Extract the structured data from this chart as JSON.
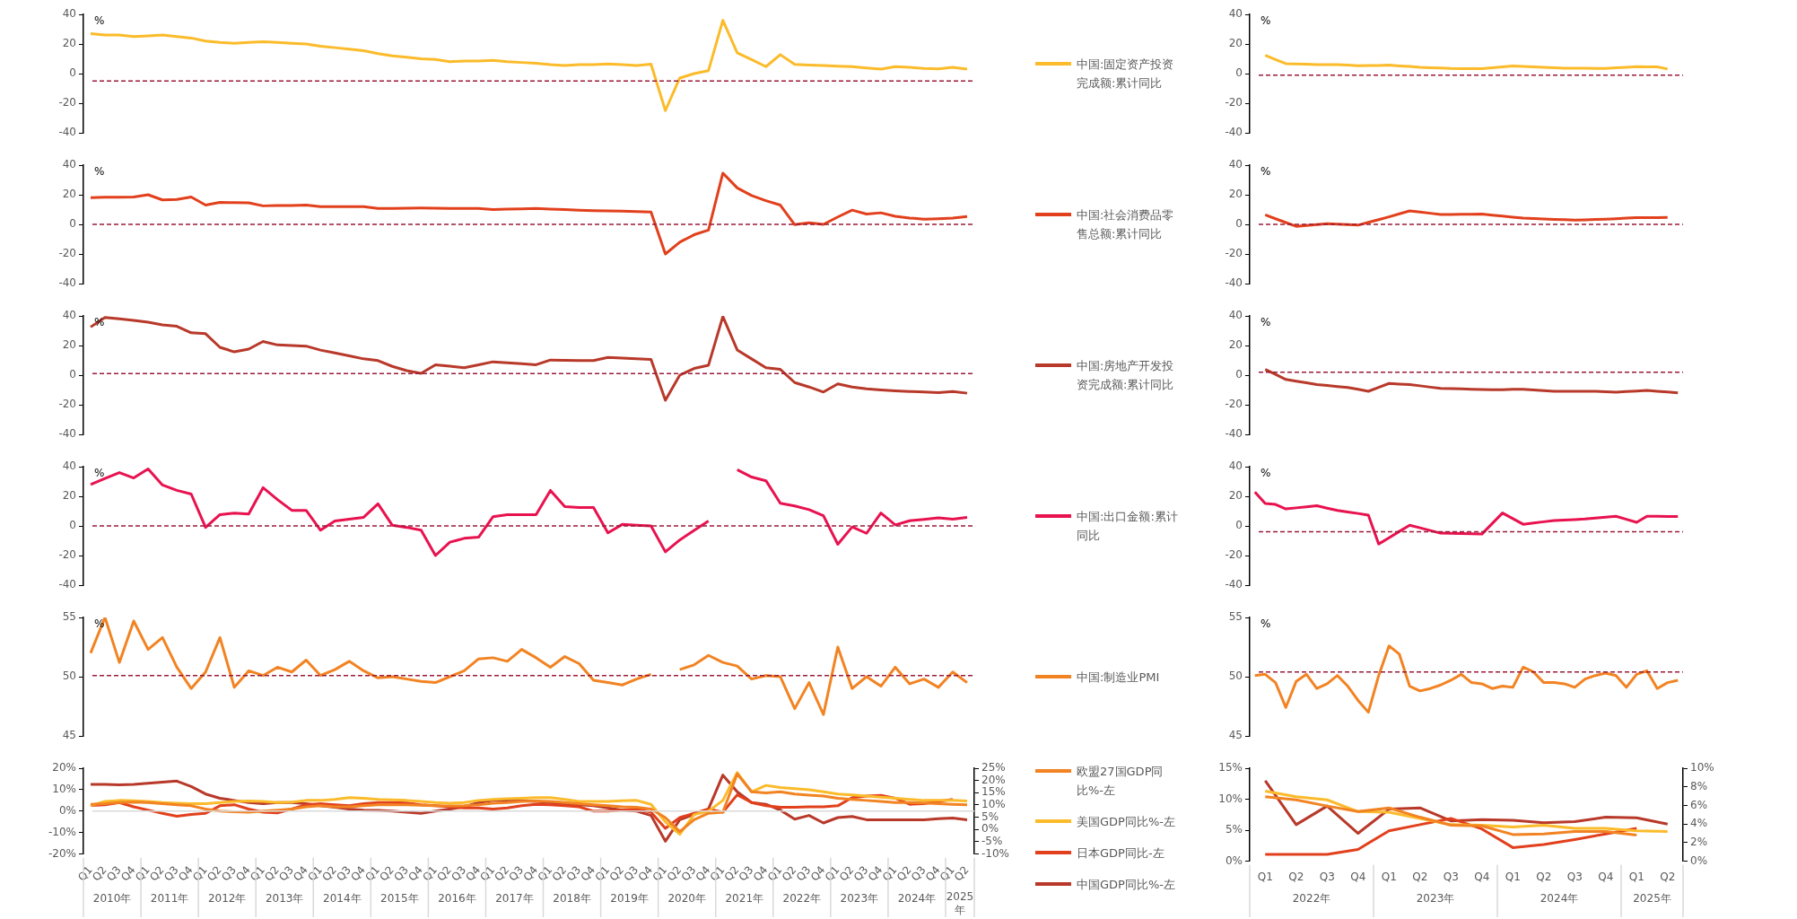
{
  "chart_data": [
    {
      "type": "line",
      "ylabel": "%",
      "categories": [
        null,
        null,
        null,
        null,
        null,
        null,
        null,
        null,
        null,
        null,
        null,
        null,
        null,
        null,
        null,
        null,
        null,
        null,
        null,
        null,
        null,
        null,
        null,
        null,
        null,
        null,
        null,
        null,
        null,
        null,
        null,
        null,
        null,
        null,
        null,
        null,
        null,
        null,
        null,
        null,
        null,
        null,
        null,
        null,
        null,
        null,
        null,
        null,
        null,
        null,
        null,
        null,
        null,
        null,
        null,
        null,
        null,
        null,
        null,
        null,
        null,
        null
      ],
      "ylim": [
        -40,
        40
      ],
      "yticks": [
        -40,
        -20,
        0,
        20,
        40
      ],
      "legend": "right",
      "ref_lines": [
        {
          "axis": "y",
          "value": -5,
          "color": "#9b1b3a",
          "line_style": "dashed"
        }
      ],
      "series": [
        {
          "name": "中国:固定资产投资完成额:累计同比",
          "color": "#fbbb2a",
          "values": [
            27,
            26,
            26,
            25,
            25.5,
            26,
            25,
            24,
            22,
            21,
            20.5,
            21,
            21.5,
            21,
            20.5,
            20,
            18.5,
            17.5,
            16.5,
            15.5,
            13.5,
            12,
            11,
            10,
            9.5,
            8,
            8.5,
            8.5,
            9,
            8,
            7.5,
            7,
            6,
            5.5,
            6,
            6,
            6.5,
            6,
            5.5,
            6.4,
            -25,
            -3,
            0,
            2,
            36,
            14,
            9.5,
            4.7,
            12.8,
            6.2,
            5.8,
            5.5,
            5,
            4.7,
            3.8,
            3,
            4.7,
            4.2,
            3.5,
            3.2,
            4.3,
            3
          ]
        }
      ]
    },
    {
      "type": "line",
      "ylabel": "%",
      "categories": [
        null,
        null,
        null,
        null,
        null,
        null,
        null,
        null,
        null,
        null,
        null,
        null,
        null,
        null,
        null,
        null,
        null,
        null,
        null,
        null,
        null,
        null,
        null,
        null,
        null,
        null,
        null,
        null,
        null,
        null,
        null,
        null,
        null,
        null,
        null,
        null,
        null,
        null,
        null,
        null,
        null,
        null
      ],
      "ylim": [
        -40,
        40
      ],
      "yticks": [
        -40,
        -20,
        0,
        20,
        40
      ],
      "ref_lines": [
        {
          "axis": "y",
          "value": -1,
          "color": "#9b1b3a",
          "line_style": "dashed"
        }
      ],
      "series": [
        {
          "color": "#fbbb2a",
          "values": [
            null,
            12.4,
            9.5,
            6.7,
            6.5,
            6.3,
            6.1,
            6.1,
            6.1,
            5.7,
            5.3,
            5.4,
            5.5,
            5.7,
            5.2,
            4.8,
            4.3,
            4,
            3.8,
            3.5,
            3.4,
            3.4,
            3.3,
            3.9,
            4.5,
            5.1,
            4.8,
            4.5,
            4.2,
            4,
            3.7,
            3.6,
            3.6,
            3.5,
            3.5,
            3.9,
            4.3,
            4.7,
            4.6,
            4.5,
            3.1,
            null
          ]
        }
      ]
    },
    {
      "type": "line",
      "ylabel": "%",
      "categories": [
        null,
        null,
        null,
        null,
        null,
        null,
        null,
        null,
        null,
        null,
        null,
        null,
        null,
        null,
        null,
        null,
        null,
        null,
        null,
        null,
        null,
        null,
        null,
        null,
        null,
        null,
        null,
        null,
        null,
        null,
        null,
        null,
        null,
        null,
        null,
        null,
        null,
        null,
        null,
        null,
        null,
        null,
        null,
        null,
        null,
        null,
        null,
        null,
        null,
        null,
        null,
        null,
        null,
        null,
        null,
        null,
        null,
        null,
        null,
        null,
        null,
        null
      ],
      "ylim": [
        -40,
        40
      ],
      "yticks": [
        -40,
        -20,
        0,
        20,
        40
      ],
      "legend": "right",
      "ref_lines": [
        {
          "axis": "y",
          "value": 0,
          "color": "#9b1b3a",
          "line_style": "dashed"
        }
      ],
      "series": [
        {
          "name": "中国:社会消费品零售总额:累计同比",
          "color": "#e2401c",
          "values": [
            18,
            18.3,
            18.4,
            18.5,
            20,
            16.5,
            16.8,
            18.5,
            13,
            14.8,
            14.7,
            14.5,
            12.5,
            12.7,
            12.8,
            13,
            12,
            12,
            12,
            12,
            10.7,
            10.8,
            10.9,
            11,
            10.9,
            10.8,
            10.8,
            10.7,
            10,
            10.3,
            10.5,
            10.7,
            10.3,
            10,
            9.6,
            9.3,
            9.1,
            8.9,
            8.7,
            8.3,
            -20,
            -12,
            -7,
            -3.9,
            34.6,
            24.6,
            19.5,
            16,
            13,
            -0.2,
            1,
            0,
            5,
            9.6,
            7,
            7.8,
            5.5,
            4.3,
            3.5,
            3.8,
            4.3,
            5.3
          ]
        }
      ]
    },
    {
      "type": "line",
      "ylabel": "%",
      "categories": [
        null,
        null,
        null,
        null,
        null,
        null,
        null,
        null,
        null,
        null,
        null,
        null,
        null,
        null,
        null,
        null,
        null,
        null,
        null,
        null,
        null,
        null,
        null,
        null,
        null,
        null,
        null,
        null,
        null,
        null,
        null,
        null,
        null,
        null,
        null,
        null,
        null,
        null,
        null,
        null,
        null,
        null
      ],
      "ylim": [
        -40,
        40
      ],
      "yticks": [
        -40,
        -20,
        0,
        20,
        40
      ],
      "ref_lines": [
        {
          "axis": "y",
          "value": 0,
          "color": "#9b1b3a",
          "line_style": "dashed"
        }
      ],
      "series": [
        {
          "color": "#e2401c",
          "values": [
            null,
            6.4,
            3.8,
            1.2,
            -1.3,
            -0.7,
            -0.1,
            0.4,
            0.1,
            -0.2,
            -0.5,
            1.4,
            3.2,
            5.1,
            7.1,
            9.1,
            8.3,
            7.5,
            6.7,
            6.7,
            6.8,
            6.8,
            6.9,
            6.2,
            5.6,
            4.9,
            4.2,
            3.9,
            3.7,
            3.4,
            3.2,
            2.9,
            3.1,
            3.3,
            3.5,
            3.8,
            4.2,
            4.5,
            4.6,
            4.6,
            4.7,
            null
          ]
        }
      ]
    },
    {
      "type": "line",
      "ylabel": "%",
      "categories": [
        null,
        null,
        null,
        null,
        null,
        null,
        null,
        null,
        null,
        null,
        null,
        null,
        null,
        null,
        null,
        null,
        null,
        null,
        null,
        null,
        null,
        null,
        null,
        null,
        null,
        null,
        null,
        null,
        null,
        null,
        null,
        null,
        null,
        null,
        null,
        null,
        null,
        null,
        null,
        null,
        null,
        null,
        null,
        null,
        null,
        null,
        null,
        null,
        null,
        null,
        null,
        null,
        null,
        null,
        null,
        null,
        null,
        null,
        null,
        null,
        null,
        null
      ],
      "ylim": [
        -40,
        40
      ],
      "yticks": [
        -40,
        -20,
        0,
        20,
        40
      ],
      "legend": "right",
      "ref_lines": [
        {
          "axis": "y",
          "value": 1,
          "color": "#9b1b3a",
          "line_style": "dashed"
        }
      ],
      "series": [
        {
          "name": "中国:房地产开发投资完成额:累计同比",
          "color": "#b8392a",
          "values": [
            32.5,
            39,
            38,
            37,
            35.7,
            34,
            33,
            28.6,
            28,
            18.8,
            15.7,
            17.6,
            22.7,
            20.4,
            20,
            19.6,
            16.9,
            15,
            13,
            11,
            9.8,
            5.9,
            3,
            1.2,
            7,
            6,
            5,
            7,
            9,
            8.3,
            7.7,
            7,
            10.2,
            10,
            9.9,
            9.8,
            12,
            11.5,
            11,
            10.6,
            -17,
            0,
            4.5,
            6.7,
            39.6,
            17,
            11,
            5,
            3.9,
            -5,
            -8,
            -11.4,
            -5.9,
            -8,
            -9.3,
            -10,
            -10.6,
            -11,
            -11.4,
            -11.8,
            -11,
            -12.2
          ]
        }
      ]
    },
    {
      "type": "line",
      "ylabel": "%",
      "categories": [
        null,
        null,
        null,
        null,
        null,
        null,
        null,
        null,
        null,
        null,
        null,
        null,
        null,
        null,
        null,
        null,
        null,
        null,
        null,
        null,
        null,
        null,
        null,
        null,
        null,
        null,
        null,
        null,
        null,
        null,
        null,
        null,
        null,
        null,
        null,
        null,
        null,
        null,
        null,
        null,
        null,
        null
      ],
      "ylim": [
        -40,
        40
      ],
      "yticks": [
        -40,
        -20,
        0,
        20,
        40
      ],
      "ref_lines": [
        {
          "axis": "y",
          "value": 2,
          "color": "#9b1b3a",
          "line_style": "dashed"
        }
      ],
      "series": [
        {
          "color": "#b8392a",
          "values": [
            null,
            3.9,
            0.5,
            -2.9,
            -4.1,
            -5.2,
            -6.4,
            -7,
            -7.7,
            -8.3,
            -9.6,
            -10.9,
            -8.3,
            -5.6,
            -6,
            -6.4,
            -7.2,
            -8.1,
            -8.9,
            -9.1,
            -9.3,
            -9.5,
            -9.7,
            -9.9,
            -9.8,
            -9.6,
            -9.5,
            -10,
            -10.4,
            -10.9,
            -10.9,
            -10.9,
            -10.9,
            -10.9,
            -11.2,
            -11.5,
            -11.1,
            -10.7,
            -10.3,
            -10.9,
            -11.4,
            -12
          ]
        }
      ]
    },
    {
      "type": "line",
      "ylabel": "%",
      "categories": [
        null,
        null,
        null,
        null,
        null,
        null,
        null,
        null,
        null,
        null,
        null,
        null,
        null,
        null,
        null,
        null,
        null,
        null,
        null,
        null,
        null,
        null,
        null,
        null,
        null,
        null,
        null,
        null,
        null,
        null,
        null,
        null,
        null,
        null,
        null,
        null,
        null,
        null,
        null,
        null,
        null,
        null,
        null,
        null,
        null,
        null,
        null,
        null,
        null,
        null,
        null,
        null,
        null,
        null,
        null,
        null,
        null,
        null,
        null,
        null,
        null,
        null
      ],
      "ylim": [
        -40,
        40
      ],
      "yticks": [
        -40,
        -20,
        0,
        20,
        40
      ],
      "legend": "right",
      "ref_lines": [
        {
          "axis": "y",
          "value": 0,
          "color": "#9b1b3a",
          "line_style": "dashed"
        }
      ],
      "series": [
        {
          "name": "中国:出口金额:累计同比",
          "color": "#e8124f",
          "values": [
            28,
            32,
            36,
            32.4,
            38.5,
            27.6,
            24,
            21.5,
            -1,
            7.6,
            8.7,
            8,
            25.8,
            17.8,
            10.5,
            10.5,
            -2.9,
            3.3,
            4.5,
            5.8,
            14.9,
            0.4,
            -1,
            -2.9,
            -20,
            -11,
            -8.4,
            -7.6,
            6.2,
            7.6,
            7.6,
            7.6,
            24,
            13,
            12.4,
            12.4,
            -4.7,
            1,
            0.5,
            0,
            -17.5,
            -9.5,
            -3,
            3.3,
            null,
            38,
            33,
            30.5,
            15.3,
            13.5,
            11,
            6.9,
            -12.4,
            -0.7,
            -5,
            8.7,
            0.7,
            3.5,
            4.4,
            5.5,
            4.5,
            5.8
          ]
        }
      ]
    },
    {
      "type": "line",
      "ylabel": "%",
      "categories": [
        null,
        null,
        null,
        null,
        null,
        null,
        null,
        null,
        null,
        null,
        null,
        null,
        null,
        null,
        null,
        null,
        null,
        null,
        null,
        null,
        null,
        null,
        null,
        null,
        null,
        null,
        null,
        null,
        null,
        null,
        null,
        null,
        null,
        null,
        null,
        null,
        null,
        null,
        null,
        null,
        null,
        null
      ],
      "ylim": [
        -40,
        40
      ],
      "yticks": [
        -40,
        -20,
        0,
        20,
        40
      ],
      "ref_lines": [
        {
          "axis": "y",
          "value": -4,
          "color": "#9b1b3a",
          "line_style": "dashed"
        }
      ],
      "series": [
        {
          "color": "#e8124f",
          "values": [
            22.9,
            15.1,
            14.5,
            11.5,
            12.2,
            12.9,
            13.6,
            12,
            10.5,
            9.4,
            8.4,
            7.3,
            -12.2,
            -8,
            -3.7,
            0.5,
            -1.3,
            -3.1,
            -4.9,
            -5,
            -5.2,
            -5.3,
            -5.5,
            1.6,
            8.7,
            4.9,
            1.1,
            1.9,
            2.8,
            3.6,
            4,
            4.3,
            4.7,
            5.3,
            5.9,
            6.5,
            4.5,
            2.4,
            6.5,
            6.5,
            6.4,
            6.4
          ]
        }
      ]
    },
    {
      "type": "line",
      "ylabel": "%",
      "categories": [
        null,
        null,
        null,
        null,
        null,
        null,
        null,
        null,
        null,
        null,
        null,
        null,
        null,
        null,
        null,
        null,
        null,
        null,
        null,
        null,
        null,
        null,
        null,
        null,
        null,
        null,
        null,
        null,
        null,
        null,
        null,
        null,
        null,
        null,
        null,
        null,
        null,
        null,
        null,
        null,
        null,
        null,
        null,
        null,
        null,
        null,
        null,
        null,
        null,
        null,
        null,
        null,
        null,
        null,
        null,
        null,
        null,
        null,
        null,
        null,
        null,
        null
      ],
      "ylim": [
        45,
        55
      ],
      "yticks": [
        45,
        50,
        55
      ],
      "legend": "right",
      "ref_lines": [
        {
          "axis": "y",
          "value": 50.1,
          "color": "#9b1b3a",
          "line_style": "dashed"
        }
      ],
      "series": [
        {
          "name": "中国:制造业PMI",
          "color": "#f28322",
          "values": [
            52,
            55,
            51.2,
            54.7,
            52.3,
            53.3,
            50.8,
            49,
            50.4,
            53.3,
            49.1,
            50.5,
            50.1,
            50.8,
            50.4,
            51.4,
            50.1,
            50.6,
            51.3,
            50.5,
            49.9,
            50,
            49.8,
            49.6,
            49.5,
            50,
            50.5,
            51.5,
            51.6,
            51.3,
            52.3,
            51.6,
            50.8,
            51.7,
            51.1,
            49.7,
            49.5,
            49.3,
            49.8,
            50.2,
            null,
            50.6,
            51,
            51.8,
            51.2,
            50.9,
            49.8,
            50.1,
            50,
            47.3,
            49.5,
            46.8,
            52.5,
            49,
            50,
            49.2,
            50.8,
            49.4,
            49.8,
            49.1,
            50.4,
            49.5
          ]
        }
      ]
    },
    {
      "type": "line",
      "ylabel": "%",
      "categories": [
        null,
        null,
        null,
        null,
        null,
        null,
        null,
        null,
        null,
        null,
        null,
        null,
        null,
        null,
        null,
        null,
        null,
        null,
        null,
        null,
        null,
        null,
        null,
        null,
        null,
        null,
        null,
        null,
        null,
        null,
        null,
        null,
        null,
        null,
        null,
        null,
        null,
        null,
        null,
        null,
        null,
        null
      ],
      "ylim": [
        45,
        55
      ],
      "yticks": [
        45,
        50,
        55
      ],
      "ref_lines": [
        {
          "axis": "y",
          "value": 50.4,
          "color": "#9b1b3a",
          "line_style": "dashed"
        }
      ],
      "series": [
        {
          "color": "#f28322",
          "values": [
            50.1,
            50.2,
            49.5,
            47.4,
            49.6,
            50.2,
            49,
            49.4,
            50.1,
            49.2,
            48,
            47,
            50.1,
            52.6,
            51.9,
            49.2,
            48.8,
            49,
            49.3,
            49.7,
            50.2,
            49.5,
            49.4,
            49,
            49.2,
            49.1,
            50.8,
            50.4,
            49.5,
            49.5,
            49.4,
            49.1,
            49.8,
            50.1,
            50.3,
            50.1,
            49.1,
            50.2,
            50.5,
            49,
            49.5,
            49.7
          ]
        }
      ]
    },
    {
      "type": "line",
      "categories": [
        "Q1",
        "Q2",
        "Q3",
        "Q4",
        "Q1",
        "Q2",
        "Q3",
        "Q4",
        "Q1",
        "Q2",
        "Q3",
        "Q4",
        "Q1",
        "Q2",
        "Q3",
        "Q4",
        "Q1",
        "Q2",
        "Q3",
        "Q4",
        "Q1",
        "Q2",
        "Q3",
        "Q4",
        "Q1",
        "Q2",
        "Q3",
        "Q4",
        "Q1",
        "Q2",
        "Q3",
        "Q4",
        "Q1",
        "Q2",
        "Q3",
        "Q4",
        "Q1",
        "Q2",
        "Q3",
        "Q4",
        "Q1",
        "Q2",
        "Q3",
        "Q4",
        "Q1",
        "Q2",
        "Q3",
        "Q4",
        "Q1",
        "Q2",
        "Q3",
        "Q4",
        "Q1",
        "Q2",
        "Q3",
        "Q4",
        "Q1",
        "Q2",
        "Q3",
        "Q4",
        "Q1",
        "Q2"
      ],
      "annotations": [
        "2010年",
        "2011年",
        "2012年",
        "2013年",
        "2014年",
        "2015年",
        "2016年",
        "2017年",
        "2018年",
        "2019年",
        "2020年",
        "2021年",
        "2022年",
        "2023年",
        "2024年",
        "2025年"
      ],
      "ylim": [
        -20,
        20
      ],
      "yticks": [
        {
          "value": -20,
          "label": "-20%"
        },
        {
          "value": -10,
          "label": "-10%"
        },
        {
          "value": 0,
          "label": "0%"
        },
        {
          "value": 10,
          "label": "10%"
        },
        {
          "value": 20,
          "label": "20%"
        }
      ],
      "y2lim": [
        -10,
        25
      ],
      "y2ticks": [
        {
          "value": -10,
          "label": "-10%"
        },
        {
          "value": -5,
          "label": "-5%"
        },
        {
          "value": 0,
          "label": "0%"
        },
        {
          "value": 5,
          "label": "5%"
        },
        {
          "value": 10,
          "label": "10%"
        },
        {
          "value": 15,
          "label": "15%"
        },
        {
          "value": 20,
          "label": "20%"
        },
        {
          "value": 25,
          "label": "25%"
        }
      ],
      "legend": "right",
      "ref_lines": [
        {
          "axis": "y",
          "value": 0,
          "color": "#d9d9d9",
          "line_style": "solid"
        }
      ],
      "series": [
        {
          "name": "欧盟27国GDP同比%-左",
          "color": "#f28322",
          "values": [
            3.2,
            3.5,
            4,
            4.2,
            4,
            3.5,
            3,
            2.5,
            1,
            0,
            -0.3,
            -0.5,
            0,
            0.5,
            1,
            2,
            2.5,
            2,
            2,
            2.5,
            3,
            3,
            3,
            2.8,
            2.5,
            2.4,
            2.5,
            3,
            3.7,
            4,
            4.5,
            4.7,
            4.5,
            4,
            3.5,
            3,
            2.5,
            2,
            1.8,
            1,
            -3,
            -9.5,
            -4,
            -1,
            -0.5,
            17.4,
            9,
            8.5,
            9,
            8,
            7.5,
            7,
            6,
            5.5,
            5,
            4.5,
            4,
            4,
            3.8,
            3.5,
            3.2,
            3
          ]
        },
        {
          "name": "美国GDP同比%-左",
          "color": "#fbbb2a",
          "values": [
            2.6,
            4.5,
            5,
            4.8,
            4.5,
            4,
            3.7,
            3.5,
            3.5,
            4,
            4.5,
            4.7,
            4.5,
            4,
            4.2,
            5,
            5,
            5.5,
            6.3,
            6,
            5.5,
            5.3,
            5,
            4.5,
            4,
            3.7,
            4,
            5,
            5.5,
            5.8,
            6,
            6.3,
            6.3,
            5.5,
            4.5,
            4.5,
            4.5,
            4.8,
            5,
            3.2,
            -5,
            -10.8,
            -1.6,
            0,
            5,
            18,
            9,
            12,
            11,
            10.5,
            10,
            9,
            8,
            7.6,
            7,
            6.5,
            6,
            5.5,
            5,
            5,
            5,
            4.7
          ]
        },
        {
          "name": "日本GDP同比-左",
          "color": "#e2401c",
          "values": [
            2.6,
            3,
            4,
            2,
            0.5,
            -1,
            -2.4,
            -1.5,
            -1,
            2.5,
            3,
            1,
            -0.5,
            -0.8,
            1,
            3,
            3.5,
            3,
            2.5,
            3.5,
            4,
            4,
            3.8,
            3,
            2.5,
            2,
            1.5,
            1.5,
            1,
            1.5,
            2.5,
            3.2,
            3,
            2.5,
            2,
            0,
            0,
            0.5,
            1,
            -0.5,
            -8,
            -3,
            -1,
            1,
            -0.5,
            7.6,
            4,
            2.5,
            1.8,
            1.8,
            2,
            2,
            2.5,
            6.3,
            7,
            7.4,
            6,
            3.2,
            3.5,
            4.5,
            5.5,
            null
          ]
        },
        {
          "name": "中国GDP同比%-左",
          "color": "#b8392a",
          "values": [
            12.5,
            12.5,
            12.3,
            12.5,
            13,
            13.5,
            14,
            11.5,
            8,
            6,
            5,
            4,
            3.5,
            4,
            4,
            3.5,
            2.5,
            1.8,
            1,
            0.5,
            0.3,
            0,
            -0.5,
            -1,
            0,
            1,
            2,
            4,
            5,
            5,
            4.8,
            4.5,
            4,
            3.5,
            3,
            2.5,
            1.5,
            0.5,
            0,
            -2,
            -14,
            -4,
            -1.5,
            1,
            16.8,
            9,
            4,
            3.2,
            0.5,
            -3.7,
            -2,
            -5.5,
            -3,
            -2.5,
            -4,
            -4,
            -4,
            -4,
            -4,
            -3.5,
            -3.2,
            -4
          ]
        }
      ]
    },
    {
      "type": "line",
      "categories": [
        "Q1",
        "Q2",
        "Q3",
        "Q4",
        "Q1",
        "Q2",
        "Q3",
        "Q4",
        "Q1",
        "Q2",
        "Q3",
        "Q4",
        "Q1",
        "Q2"
      ],
      "annotations": [
        "2022年",
        "2023年",
        "2024年",
        "2025年"
      ],
      "ylim": [
        0,
        15
      ],
      "yticks": [
        {
          "value": 0,
          "label": "0%"
        },
        {
          "value": 5,
          "label": "5%"
        },
        {
          "value": 10,
          "label": "10%"
        },
        {
          "value": 15,
          "label": "15%"
        }
      ],
      "y2lim": [
        0,
        10
      ],
      "y2ticks": [
        {
          "value": 0,
          "label": "0%"
        },
        {
          "value": 2,
          "label": "2%"
        },
        {
          "value": 4,
          "label": "4%"
        },
        {
          "value": 6,
          "label": "6%"
        },
        {
          "value": 8,
          "label": "8%"
        },
        {
          "value": 10,
          "label": "10%"
        }
      ],
      "series": [
        {
          "color": "#f28322",
          "values": [
            10.4,
            9.9,
            8.9,
            8,
            8.6,
            7.1,
            5.8,
            5.7,
            4.3,
            4.4,
            4.8,
            4.8,
            4.2,
            null
          ]
        },
        {
          "color": "#fbbb2a",
          "values": [
            11.3,
            10.4,
            9.9,
            8,
            7.9,
            6.9,
            5.9,
            5.8,
            5.5,
            5.8,
            5.3,
            5.3,
            4.9,
            4.8
          ]
        },
        {
          "color": "#e2401c",
          "values": [
            1.1,
            1.1,
            1.1,
            1.9,
            4.9,
            5.9,
            6.9,
            5.2,
            2.2,
            2.7,
            3.5,
            4.4,
            5.3,
            null
          ]
        },
        {
          "color": "#b8392a",
          "values": [
            13,
            5.9,
            8.9,
            4.5,
            8.4,
            8.6,
            6.5,
            6.7,
            6.6,
            6.2,
            6.4,
            7.1,
            7,
            6
          ]
        }
      ]
    }
  ]
}
